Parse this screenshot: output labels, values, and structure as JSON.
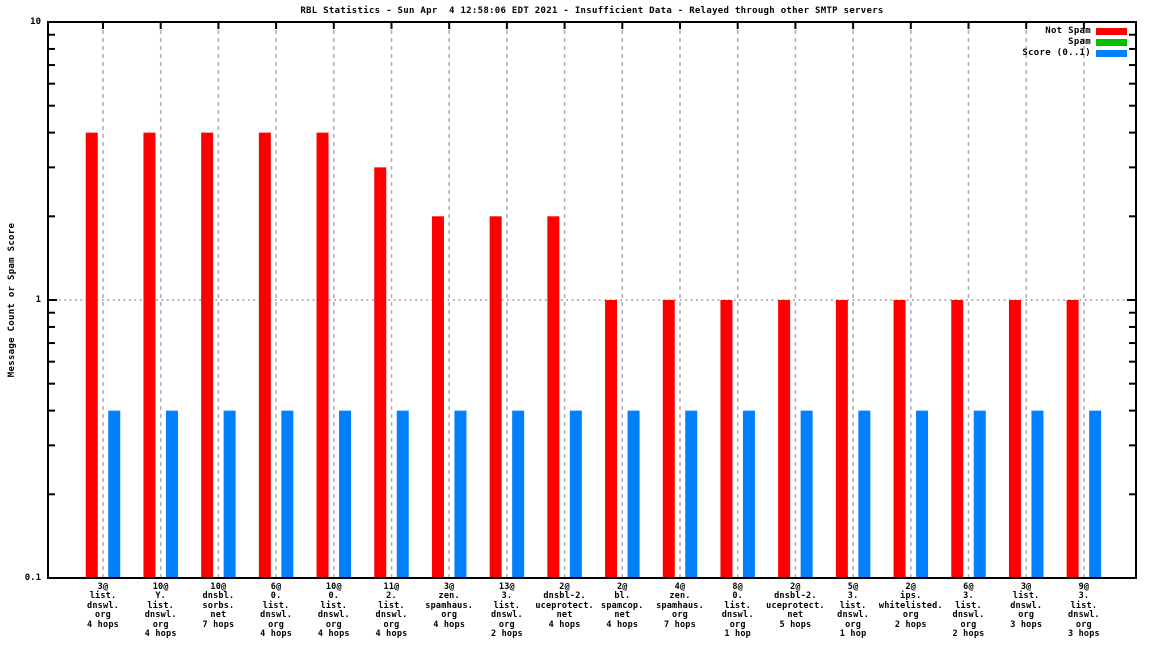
{
  "title": "RBL Statistics - Sun Apr  4 12:58:06 EDT 2021 - Insufficient Data - Relayed through other SMTP servers",
  "y_axis": {
    "label": "Message Count or Spam Score",
    "ticks": [
      "10",
      "1",
      "0.1"
    ]
  },
  "legend": [
    {
      "label": "Not Spam",
      "color": "#ff0000"
    },
    {
      "label": "Spam",
      "color": "#00c000"
    },
    {
      "label": "Score (0..1)",
      "color": "#0080ff"
    }
  ],
  "chart_data": {
    "type": "bar",
    "title": "RBL Statistics - Sun Apr  4 12:58:06 EDT 2021 - Insufficient Data - Relayed through other SMTP servers",
    "ylabel": "Message Count or Spam Score",
    "y_scale": "log",
    "ylim": [
      0.1,
      10
    ],
    "grid": {
      "x_gridlines": "dashed",
      "y_gridline_at_1": "dotted",
      "legend_position": "top-right"
    },
    "categories": [
      [
        "3@",
        "list.",
        "dnswl.",
        "org",
        "4 hops"
      ],
      [
        "10@",
        "Y.",
        "list.",
        "dnswl.",
        "org",
        "4 hops"
      ],
      [
        "10@",
        "dnsbl.",
        "sorbs.",
        "net",
        "7 hops"
      ],
      [
        "6@",
        "0.",
        "list.",
        "dnswl.",
        "org",
        "4 hops"
      ],
      [
        "10@",
        "0.",
        "list.",
        "dnswl.",
        "org",
        "4 hops"
      ],
      [
        "11@",
        "2.",
        "list.",
        "dnswl.",
        "org",
        "4 hops"
      ],
      [
        "3@",
        "zen.",
        "spamhaus.",
        "org",
        "4 hops"
      ],
      [
        "13@",
        "3.",
        "list.",
        "dnswl.",
        "org",
        "2 hops"
      ],
      [
        "2@",
        "dnsbl-2.",
        "uceprotect.",
        "net",
        "4 hops"
      ],
      [
        "2@",
        "bl.",
        "spamcop.",
        "net",
        "4 hops"
      ],
      [
        "4@",
        "zen.",
        "spamhaus.",
        "org",
        "7 hops"
      ],
      [
        "8@",
        "0.",
        "list.",
        "dnswl.",
        "org",
        "1 hop"
      ],
      [
        "2@",
        "dnsbl-2.",
        "uceprotect.",
        "net",
        "5 hops"
      ],
      [
        "5@",
        "3.",
        "list.",
        "dnswl.",
        "org",
        "1 hop"
      ],
      [
        "2@",
        "ips.",
        "whitelisted.",
        "org",
        "2 hops"
      ],
      [
        "6@",
        "3.",
        "list.",
        "dnswl.",
        "org",
        "2 hops"
      ],
      [
        "3@",
        "list.",
        "dnswl.",
        "org",
        "3 hops"
      ],
      [
        "9@",
        "3.",
        "list.",
        "dnswl.",
        "org",
        "3 hops"
      ]
    ],
    "series": [
      {
        "name": "Not Spam",
        "color": "#ff0000",
        "values": [
          4,
          4,
          4,
          4,
          4,
          3,
          2,
          2,
          2,
          1,
          1,
          1,
          1,
          1,
          1,
          1,
          1,
          1
        ]
      },
      {
        "name": "Spam",
        "color": "#00c000",
        "values": [
          0,
          0,
          0,
          0,
          0,
          0,
          0,
          0,
          0,
          0,
          0,
          0,
          0,
          0,
          0,
          0,
          0,
          0
        ]
      },
      {
        "name": "Score (0..1)",
        "color": "#0080ff",
        "values": [
          0.4,
          0.4,
          0.4,
          0.4,
          0.4,
          0.4,
          0.4,
          0.4,
          0.4,
          0.4,
          0.4,
          0.4,
          0.4,
          0.4,
          0.4,
          0.4,
          0.4,
          0.4
        ]
      }
    ]
  }
}
